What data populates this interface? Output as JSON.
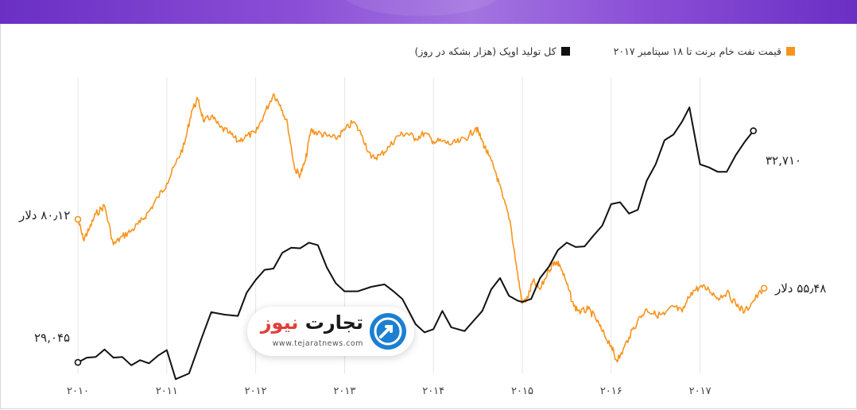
{
  "legend": {
    "brent_label": "قیمت نفت خام برنت تا ۱۸ سپتامبر ۲۰۱۷",
    "opec_label": "کل تولید اوپک (هزار بشکه در روز)"
  },
  "end_labels": {
    "brent_start": "۸۰٫۱۲ دلار",
    "brent_end": "۵۵٫۴۸ دلار",
    "opec_start": "۲۹,۰۴۵",
    "opec_end": "۳۲,۷۱۰"
  },
  "logo": {
    "name_part1": "تجارت",
    "name_part2": "نیوز",
    "url": "www.tejaratnews.com"
  },
  "chart_data": {
    "type": "line",
    "x_ticks": [
      "۲۰۱۰",
      "۲۰۱۱",
      "۲۰۱۲",
      "۲۰۱۳",
      "۲۰۱۴",
      "۲۰۱۵",
      "۲۰۱۶",
      "۲۰۱۷"
    ],
    "x_range": [
      2010.0,
      2017.72
    ],
    "grid": "vertical",
    "legend_position": "top-right",
    "series": [
      {
        "name": "قیمت نفت خام برنت تا ۱۸ سپتامبر ۲۰۱۷",
        "color": "#f7941d",
        "axis": "left",
        "y_range": [
          25,
          131
        ],
        "points": [
          [
            2010.0,
            80.12
          ],
          [
            2010.06,
            73
          ],
          [
            2010.12,
            76
          ],
          [
            2010.2,
            82
          ],
          [
            2010.3,
            85
          ],
          [
            2010.4,
            71
          ],
          [
            2010.5,
            74
          ],
          [
            2010.6,
            76
          ],
          [
            2010.7,
            79
          ],
          [
            2010.8,
            83
          ],
          [
            2010.9,
            88
          ],
          [
            2011.0,
            93
          ],
          [
            2011.1,
            100
          ],
          [
            2011.2,
            107
          ],
          [
            2011.28,
            119
          ],
          [
            2011.35,
            123
          ],
          [
            2011.42,
            115
          ],
          [
            2011.5,
            117
          ],
          [
            2011.6,
            113
          ],
          [
            2011.7,
            111
          ],
          [
            2011.8,
            108
          ],
          [
            2011.9,
            110
          ],
          [
            2012.0,
            111
          ],
          [
            2012.1,
            118
          ],
          [
            2012.2,
            125
          ],
          [
            2012.28,
            121
          ],
          [
            2012.36,
            114
          ],
          [
            2012.44,
            98
          ],
          [
            2012.5,
            96
          ],
          [
            2012.56,
            101
          ],
          [
            2012.62,
            112
          ],
          [
            2012.7,
            111
          ],
          [
            2012.8,
            110
          ],
          [
            2012.9,
            109
          ],
          [
            2013.0,
            112
          ],
          [
            2013.1,
            115
          ],
          [
            2013.2,
            110
          ],
          [
            2013.3,
            102
          ],
          [
            2013.4,
            103
          ],
          [
            2013.5,
            106
          ],
          [
            2013.6,
            110
          ],
          [
            2013.7,
            111
          ],
          [
            2013.8,
            109
          ],
          [
            2013.9,
            111
          ],
          [
            2014.0,
            108
          ],
          [
            2014.1,
            108
          ],
          [
            2014.2,
            107
          ],
          [
            2014.3,
            108
          ],
          [
            2014.4,
            110
          ],
          [
            2014.48,
            113
          ],
          [
            2014.55,
            108
          ],
          [
            2014.62,
            103
          ],
          [
            2014.7,
            97
          ],
          [
            2014.78,
            88
          ],
          [
            2014.86,
            80
          ],
          [
            2014.94,
            62
          ],
          [
            2015.0,
            50
          ],
          [
            2015.06,
            52
          ],
          [
            2015.12,
            58
          ],
          [
            2015.2,
            55
          ],
          [
            2015.3,
            62
          ],
          [
            2015.36,
            65
          ],
          [
            2015.42,
            64
          ],
          [
            2015.5,
            57
          ],
          [
            2015.58,
            49
          ],
          [
            2015.66,
            47
          ],
          [
            2015.74,
            48
          ],
          [
            2015.82,
            45
          ],
          [
            2015.9,
            40
          ],
          [
            2016.0,
            35
          ],
          [
            2016.05,
            30
          ],
          [
            2016.1,
            31
          ],
          [
            2016.2,
            38
          ],
          [
            2016.3,
            44
          ],
          [
            2016.4,
            48
          ],
          [
            2016.5,
            46
          ],
          [
            2016.6,
            46
          ],
          [
            2016.7,
            49
          ],
          [
            2016.8,
            47
          ],
          [
            2016.9,
            54
          ],
          [
            2017.0,
            56
          ],
          [
            2017.1,
            55
          ],
          [
            2017.2,
            52
          ],
          [
            2017.3,
            54
          ],
          [
            2017.4,
            50
          ],
          [
            2017.5,
            47
          ],
          [
            2017.6,
            51
          ],
          [
            2017.72,
            55.48
          ]
        ]
      },
      {
        "name": "کل تولید اوپک (هزار بشکه در روز)",
        "color": "#111111",
        "axis": "right",
        "y_range": [
          28870,
          33560
        ],
        "points": [
          [
            2010.0,
            29045
          ],
          [
            2010.1,
            29120
          ],
          [
            2010.2,
            29130
          ],
          [
            2010.3,
            29250
          ],
          [
            2010.4,
            29120
          ],
          [
            2010.5,
            29130
          ],
          [
            2010.6,
            29000
          ],
          [
            2010.7,
            29080
          ],
          [
            2010.8,
            29030
          ],
          [
            2010.9,
            29150
          ],
          [
            2011.0,
            29240
          ],
          [
            2011.1,
            28780
          ],
          [
            2011.25,
            28870
          ],
          [
            2011.4,
            29460
          ],
          [
            2011.5,
            29840
          ],
          [
            2011.65,
            29800
          ],
          [
            2011.8,
            29780
          ],
          [
            2011.9,
            30150
          ],
          [
            2012.0,
            30350
          ],
          [
            2012.1,
            30510
          ],
          [
            2012.2,
            30530
          ],
          [
            2012.3,
            30780
          ],
          [
            2012.4,
            30860
          ],
          [
            2012.5,
            30850
          ],
          [
            2012.6,
            30940
          ],
          [
            2012.7,
            30900
          ],
          [
            2012.8,
            30550
          ],
          [
            2012.9,
            30300
          ],
          [
            2013.0,
            30170
          ],
          [
            2013.15,
            30170
          ],
          [
            2013.3,
            30240
          ],
          [
            2013.45,
            30280
          ],
          [
            2013.55,
            30170
          ],
          [
            2013.65,
            30050
          ],
          [
            2013.8,
            29650
          ],
          [
            2013.9,
            29520
          ],
          [
            2014.0,
            29570
          ],
          [
            2014.1,
            29860
          ],
          [
            2014.2,
            29600
          ],
          [
            2014.35,
            29540
          ],
          [
            2014.45,
            29700
          ],
          [
            2014.55,
            29860
          ],
          [
            2014.65,
            30200
          ],
          [
            2014.75,
            30380
          ],
          [
            2014.85,
            30100
          ],
          [
            2014.95,
            30020
          ],
          [
            2015.0,
            30000
          ],
          [
            2015.1,
            30050
          ],
          [
            2015.2,
            30380
          ],
          [
            2015.3,
            30560
          ],
          [
            2015.4,
            30820
          ],
          [
            2015.5,
            30940
          ],
          [
            2015.6,
            30870
          ],
          [
            2015.7,
            30880
          ],
          [
            2015.8,
            31050
          ],
          [
            2015.9,
            31210
          ],
          [
            2016.0,
            31550
          ],
          [
            2016.1,
            31580
          ],
          [
            2016.2,
            31400
          ],
          [
            2016.3,
            31460
          ],
          [
            2016.4,
            31920
          ],
          [
            2016.5,
            32180
          ],
          [
            2016.6,
            32560
          ],
          [
            2016.7,
            32650
          ],
          [
            2016.8,
            32860
          ],
          [
            2016.88,
            33080
          ],
          [
            2017.0,
            32180
          ],
          [
            2017.1,
            32130
          ],
          [
            2017.2,
            32060
          ],
          [
            2017.3,
            32060
          ],
          [
            2017.4,
            32320
          ],
          [
            2017.5,
            32530
          ],
          [
            2017.6,
            32710
          ]
        ]
      }
    ]
  }
}
